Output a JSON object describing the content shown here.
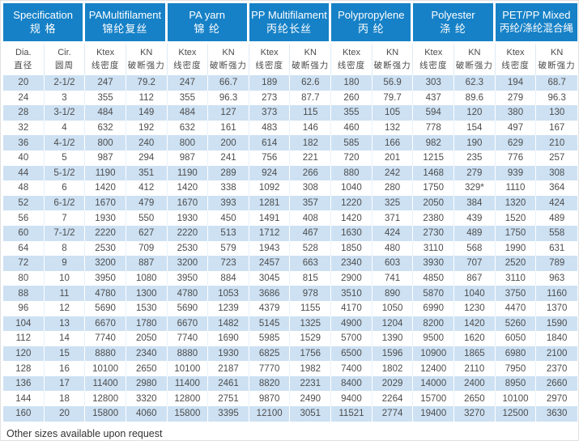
{
  "note": "Other sizes available upon request",
  "colors": {
    "header_bg": "#1681c7",
    "header_text": "#ffffff",
    "stripe_bg": "#cde1f3",
    "body_text": "#4d4d4d"
  },
  "table": {
    "groups": [
      {
        "en": "Specification",
        "zh": "规 格",
        "span": 2
      },
      {
        "en": "PAMultifilament",
        "zh": "锦纶复丝",
        "span": 2
      },
      {
        "en": "PA yarn",
        "zh": "锦 纶",
        "span": 2
      },
      {
        "en": "PP Multifilament",
        "zh": "丙纶长丝",
        "span": 2
      },
      {
        "en": "Polypropylene",
        "zh": "丙 纶",
        "span": 2
      },
      {
        "en": "Polyester",
        "zh": "涤 纶",
        "span": 2
      },
      {
        "en": "PET/PP Mixed",
        "zh": "丙纶/涤纶混合绳",
        "span": 2
      }
    ],
    "subcolumns": [
      {
        "en": "Dia.",
        "zh": "直径"
      },
      {
        "en": "Cir.",
        "zh": "圆周"
      },
      {
        "en": "Ktex",
        "zh": "线密度"
      },
      {
        "en": "KN",
        "zh": "破断强力"
      },
      {
        "en": "Ktex",
        "zh": "线密度"
      },
      {
        "en": "KN",
        "zh": "破断强力"
      },
      {
        "en": "Ktex",
        "zh": "线密度"
      },
      {
        "en": "KN",
        "zh": "破断强力"
      },
      {
        "en": "Ktex",
        "zh": "线密度"
      },
      {
        "en": "KN",
        "zh": "破断强力"
      },
      {
        "en": "Ktex",
        "zh": "线密度"
      },
      {
        "en": "KN",
        "zh": "破断强力"
      },
      {
        "en": "Ktex",
        "zh": "线密度"
      },
      {
        "en": "KN",
        "zh": "破断强力"
      }
    ],
    "rows": [
      [
        "20",
        "2-1/2",
        "247",
        "79.2",
        "247",
        "66.7",
        "189",
        "62.6",
        "180",
        "56.9",
        "303",
        "62.3",
        "194",
        "68.7"
      ],
      [
        "24",
        "3",
        "355",
        "112",
        "355",
        "96.3",
        "273",
        "87.7",
        "260",
        "79.7",
        "437",
        "89.6",
        "279",
        "96.3"
      ],
      [
        "28",
        "3-1/2",
        "484",
        "149",
        "484",
        "127",
        "373",
        "115",
        "355",
        "105",
        "594",
        "120",
        "380",
        "130"
      ],
      [
        "32",
        "4",
        "632",
        "192",
        "632",
        "161",
        "483",
        "146",
        "460",
        "132",
        "778",
        "154",
        "497",
        "167"
      ],
      [
        "36",
        "4-1/2",
        "800",
        "240",
        "800",
        "200",
        "614",
        "182",
        "585",
        "166",
        "982",
        "190",
        "629",
        "210"
      ],
      [
        "40",
        "5",
        "987",
        "294",
        "987",
        "241",
        "756",
        "221",
        "720",
        "201",
        "1215",
        "235",
        "776",
        "257"
      ],
      [
        "44",
        "5-1/2",
        "1190",
        "351",
        "1190",
        "289",
        "924",
        "266",
        "880",
        "242",
        "1468",
        "279",
        "939",
        "308"
      ],
      [
        "48",
        "6",
        "1420",
        "412",
        "1420",
        "338",
        "1092",
        "308",
        "1040",
        "280",
        "1750",
        "329*",
        "1110",
        "364"
      ],
      [
        "52",
        "6-1/2",
        "1670",
        "479",
        "1670",
        "393",
        "1281",
        "357",
        "1220",
        "325",
        "2050",
        "384",
        "1320",
        "424"
      ],
      [
        "56",
        "7",
        "1930",
        "550",
        "1930",
        "450",
        "1491",
        "408",
        "1420",
        "371",
        "2380",
        "439",
        "1520",
        "489"
      ],
      [
        "60",
        "7-1/2",
        "2220",
        "627",
        "2220",
        "513",
        "1712",
        "467",
        "1630",
        "424",
        "2730",
        "489",
        "1750",
        "558"
      ],
      [
        "64",
        "8",
        "2530",
        "709",
        "2530",
        "579",
        "1943",
        "528",
        "1850",
        "480",
        "3110",
        "568",
        "1990",
        "631"
      ],
      [
        "72",
        "9",
        "3200",
        "887",
        "3200",
        "723",
        "2457",
        "663",
        "2340",
        "603",
        "3930",
        "707",
        "2520",
        "789"
      ],
      [
        "80",
        "10",
        "3950",
        "1080",
        "3950",
        "884",
        "3045",
        "815",
        "2900",
        "741",
        "4850",
        "867",
        "3110",
        "963"
      ],
      [
        "88",
        "11",
        "4780",
        "1300",
        "4780",
        "1053",
        "3686",
        "978",
        "3510",
        "890",
        "5870",
        "1040",
        "3750",
        "1160"
      ],
      [
        "96",
        "12",
        "5690",
        "1530",
        "5690",
        "1239",
        "4379",
        "1155",
        "4170",
        "1050",
        "6990",
        "1230",
        "4470",
        "1370"
      ],
      [
        "104",
        "13",
        "6670",
        "1780",
        "6670",
        "1482",
        "5145",
        "1325",
        "4900",
        "1204",
        "8200",
        "1420",
        "5260",
        "1590"
      ],
      [
        "112",
        "14",
        "7740",
        "2050",
        "7740",
        "1690",
        "5985",
        "1529",
        "5700",
        "1390",
        "9500",
        "1620",
        "6050",
        "1840"
      ],
      [
        "120",
        "15",
        "8880",
        "2340",
        "8880",
        "1930",
        "6825",
        "1756",
        "6500",
        "1596",
        "10900",
        "1865",
        "6980",
        "2100"
      ],
      [
        "128",
        "16",
        "10100",
        "2650",
        "10100",
        "2187",
        "7770",
        "1982",
        "7400",
        "1802",
        "12400",
        "2110",
        "7950",
        "2370"
      ],
      [
        "136",
        "17",
        "11400",
        "2980",
        "11400",
        "2461",
        "8820",
        "2231",
        "8400",
        "2029",
        "14000",
        "2400",
        "8950",
        "2660"
      ],
      [
        "144",
        "18",
        "12800",
        "3320",
        "12800",
        "2751",
        "9870",
        "2490",
        "9400",
        "2264",
        "15700",
        "2650",
        "10100",
        "2970"
      ],
      [
        "160",
        "20",
        "15800",
        "4060",
        "15800",
        "3395",
        "12100",
        "3051",
        "11521",
        "2774",
        "19400",
        "3270",
        "12500",
        "3630"
      ]
    ]
  }
}
